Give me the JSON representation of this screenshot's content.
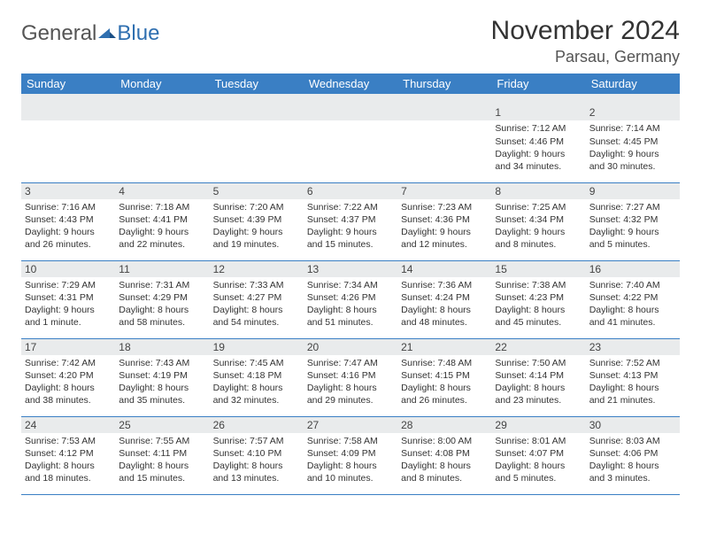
{
  "brand": {
    "part1": "General",
    "part2": "Blue",
    "color1": "#666666",
    "color2": "#2f6fb0"
  },
  "title": "November 2024",
  "location": "Parsau, Germany",
  "colors": {
    "header_bg": "#3a7fc4",
    "header_fg": "#ffffff",
    "daynum_bg": "#e9ebec",
    "border": "#3a7fc4",
    "text": "#333333"
  },
  "weekdays": [
    "Sunday",
    "Monday",
    "Tuesday",
    "Wednesday",
    "Thursday",
    "Friday",
    "Saturday"
  ],
  "weeks": [
    [
      {
        "n": "",
        "sr": "",
        "ss": "",
        "dl": ""
      },
      {
        "n": "",
        "sr": "",
        "ss": "",
        "dl": ""
      },
      {
        "n": "",
        "sr": "",
        "ss": "",
        "dl": ""
      },
      {
        "n": "",
        "sr": "",
        "ss": "",
        "dl": ""
      },
      {
        "n": "",
        "sr": "",
        "ss": "",
        "dl": ""
      },
      {
        "n": "1",
        "sr": "Sunrise: 7:12 AM",
        "ss": "Sunset: 4:46 PM",
        "dl": "Daylight: 9 hours and 34 minutes."
      },
      {
        "n": "2",
        "sr": "Sunrise: 7:14 AM",
        "ss": "Sunset: 4:45 PM",
        "dl": "Daylight: 9 hours and 30 minutes."
      }
    ],
    [
      {
        "n": "3",
        "sr": "Sunrise: 7:16 AM",
        "ss": "Sunset: 4:43 PM",
        "dl": "Daylight: 9 hours and 26 minutes."
      },
      {
        "n": "4",
        "sr": "Sunrise: 7:18 AM",
        "ss": "Sunset: 4:41 PM",
        "dl": "Daylight: 9 hours and 22 minutes."
      },
      {
        "n": "5",
        "sr": "Sunrise: 7:20 AM",
        "ss": "Sunset: 4:39 PM",
        "dl": "Daylight: 9 hours and 19 minutes."
      },
      {
        "n": "6",
        "sr": "Sunrise: 7:22 AM",
        "ss": "Sunset: 4:37 PM",
        "dl": "Daylight: 9 hours and 15 minutes."
      },
      {
        "n": "7",
        "sr": "Sunrise: 7:23 AM",
        "ss": "Sunset: 4:36 PM",
        "dl": "Daylight: 9 hours and 12 minutes."
      },
      {
        "n": "8",
        "sr": "Sunrise: 7:25 AM",
        "ss": "Sunset: 4:34 PM",
        "dl": "Daylight: 9 hours and 8 minutes."
      },
      {
        "n": "9",
        "sr": "Sunrise: 7:27 AM",
        "ss": "Sunset: 4:32 PM",
        "dl": "Daylight: 9 hours and 5 minutes."
      }
    ],
    [
      {
        "n": "10",
        "sr": "Sunrise: 7:29 AM",
        "ss": "Sunset: 4:31 PM",
        "dl": "Daylight: 9 hours and 1 minute."
      },
      {
        "n": "11",
        "sr": "Sunrise: 7:31 AM",
        "ss": "Sunset: 4:29 PM",
        "dl": "Daylight: 8 hours and 58 minutes."
      },
      {
        "n": "12",
        "sr": "Sunrise: 7:33 AM",
        "ss": "Sunset: 4:27 PM",
        "dl": "Daylight: 8 hours and 54 minutes."
      },
      {
        "n": "13",
        "sr": "Sunrise: 7:34 AM",
        "ss": "Sunset: 4:26 PM",
        "dl": "Daylight: 8 hours and 51 minutes."
      },
      {
        "n": "14",
        "sr": "Sunrise: 7:36 AM",
        "ss": "Sunset: 4:24 PM",
        "dl": "Daylight: 8 hours and 48 minutes."
      },
      {
        "n": "15",
        "sr": "Sunrise: 7:38 AM",
        "ss": "Sunset: 4:23 PM",
        "dl": "Daylight: 8 hours and 45 minutes."
      },
      {
        "n": "16",
        "sr": "Sunrise: 7:40 AM",
        "ss": "Sunset: 4:22 PM",
        "dl": "Daylight: 8 hours and 41 minutes."
      }
    ],
    [
      {
        "n": "17",
        "sr": "Sunrise: 7:42 AM",
        "ss": "Sunset: 4:20 PM",
        "dl": "Daylight: 8 hours and 38 minutes."
      },
      {
        "n": "18",
        "sr": "Sunrise: 7:43 AM",
        "ss": "Sunset: 4:19 PM",
        "dl": "Daylight: 8 hours and 35 minutes."
      },
      {
        "n": "19",
        "sr": "Sunrise: 7:45 AM",
        "ss": "Sunset: 4:18 PM",
        "dl": "Daylight: 8 hours and 32 minutes."
      },
      {
        "n": "20",
        "sr": "Sunrise: 7:47 AM",
        "ss": "Sunset: 4:16 PM",
        "dl": "Daylight: 8 hours and 29 minutes."
      },
      {
        "n": "21",
        "sr": "Sunrise: 7:48 AM",
        "ss": "Sunset: 4:15 PM",
        "dl": "Daylight: 8 hours and 26 minutes."
      },
      {
        "n": "22",
        "sr": "Sunrise: 7:50 AM",
        "ss": "Sunset: 4:14 PM",
        "dl": "Daylight: 8 hours and 23 minutes."
      },
      {
        "n": "23",
        "sr": "Sunrise: 7:52 AM",
        "ss": "Sunset: 4:13 PM",
        "dl": "Daylight: 8 hours and 21 minutes."
      }
    ],
    [
      {
        "n": "24",
        "sr": "Sunrise: 7:53 AM",
        "ss": "Sunset: 4:12 PM",
        "dl": "Daylight: 8 hours and 18 minutes."
      },
      {
        "n": "25",
        "sr": "Sunrise: 7:55 AM",
        "ss": "Sunset: 4:11 PM",
        "dl": "Daylight: 8 hours and 15 minutes."
      },
      {
        "n": "26",
        "sr": "Sunrise: 7:57 AM",
        "ss": "Sunset: 4:10 PM",
        "dl": "Daylight: 8 hours and 13 minutes."
      },
      {
        "n": "27",
        "sr": "Sunrise: 7:58 AM",
        "ss": "Sunset: 4:09 PM",
        "dl": "Daylight: 8 hours and 10 minutes."
      },
      {
        "n": "28",
        "sr": "Sunrise: 8:00 AM",
        "ss": "Sunset: 4:08 PM",
        "dl": "Daylight: 8 hours and 8 minutes."
      },
      {
        "n": "29",
        "sr": "Sunrise: 8:01 AM",
        "ss": "Sunset: 4:07 PM",
        "dl": "Daylight: 8 hours and 5 minutes."
      },
      {
        "n": "30",
        "sr": "Sunrise: 8:03 AM",
        "ss": "Sunset: 4:06 PM",
        "dl": "Daylight: 8 hours and 3 minutes."
      }
    ]
  ]
}
